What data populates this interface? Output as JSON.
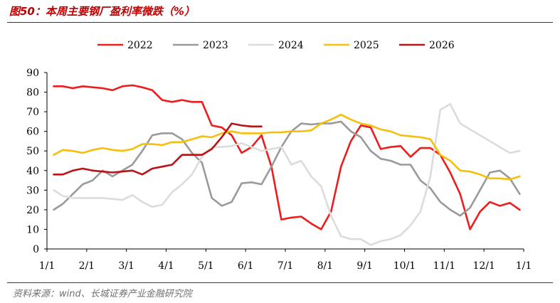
{
  "title": "图50：本周主要钢厂盈利率微跌（%）",
  "source": "资料来源：wind、长城证券产业金融研究院",
  "chart_data": {
    "type": "line",
    "title": "图50：本周主要钢厂盈利率微跌（%）",
    "xlabel": "",
    "ylabel": "",
    "x_ticks": [
      "1/1",
      "2/1",
      "3/1",
      "4/1",
      "5/1",
      "6/1",
      "7/1",
      "8/1",
      "9/1",
      "10/1",
      "11/1",
      "12/1",
      "1/1"
    ],
    "y_ticks": [
      0,
      10,
      20,
      30,
      40,
      50,
      60,
      70,
      80,
      90
    ],
    "ylim": [
      0,
      90
    ],
    "x_domain": [
      0,
      12
    ],
    "x_unit": "months since Jan 1",
    "grid": false,
    "legend_position": "top",
    "series": [
      {
        "name": "2022",
        "color": "#ee1c1c",
        "x": [
          0.17,
          0.4,
          0.65,
          0.9,
          1.15,
          1.4,
          1.65,
          1.9,
          2.15,
          2.4,
          2.65,
          2.9,
          3.15,
          3.4,
          3.65,
          3.9,
          4.15,
          4.4,
          4.65,
          4.9,
          5.15,
          5.4,
          5.65,
          5.9,
          6.15,
          6.4,
          6.65,
          6.9,
          7.15,
          7.4,
          7.65,
          7.9,
          8.15,
          8.4,
          8.65,
          8.9,
          9.15,
          9.4,
          9.65,
          9.9,
          10.15,
          10.4,
          10.65,
          10.9,
          11.15,
          11.4,
          11.65,
          11.9
        ],
        "values": [
          83,
          83,
          82,
          83,
          82.5,
          82,
          81,
          83,
          83.5,
          82.5,
          81,
          76,
          75,
          76,
          75,
          75,
          63,
          62,
          58,
          49,
          52,
          58,
          42,
          15,
          16,
          16.5,
          13,
          10,
          19,
          42,
          55,
          63,
          62,
          51,
          52,
          52.5,
          47,
          51.5,
          51.5,
          48,
          39,
          28,
          10,
          19,
          24,
          22,
          23.5,
          20
        ]
      },
      {
        "name": "2023",
        "color": "#9a9a9a",
        "x": [
          0.17,
          0.4,
          0.65,
          0.9,
          1.15,
          1.4,
          1.65,
          1.9,
          2.15,
          2.4,
          2.65,
          2.9,
          3.15,
          3.4,
          3.65,
          3.9,
          4.15,
          4.4,
          4.65,
          4.9,
          5.15,
          5.4,
          5.65,
          5.9,
          6.15,
          6.4,
          6.65,
          6.9,
          7.15,
          7.4,
          7.65,
          7.9,
          8.15,
          8.4,
          8.65,
          8.9,
          9.15,
          9.4,
          9.65,
          9.9,
          10.15,
          10.4,
          10.65,
          10.9,
          11.15,
          11.4,
          11.65,
          11.9
        ],
        "values": [
          20,
          23,
          28,
          33,
          35,
          40,
          37,
          40,
          43,
          50,
          58,
          59,
          59,
          56,
          49,
          44,
          26,
          22,
          24,
          33.5,
          34,
          33,
          42,
          52,
          60,
          64,
          63.5,
          64,
          64,
          65,
          60,
          57,
          50,
          46,
          45,
          43,
          43,
          35,
          31,
          24,
          20,
          17,
          21,
          30,
          39,
          40,
          36,
          28
        ]
      },
      {
        "name": "2024",
        "color": "#dcdcdc",
        "x": [
          0.17,
          0.4,
          0.65,
          0.9,
          1.15,
          1.4,
          1.65,
          1.9,
          2.15,
          2.4,
          2.65,
          2.9,
          3.15,
          3.4,
          3.65,
          3.9,
          4.15,
          4.4,
          4.65,
          4.9,
          5.15,
          5.4,
          5.65,
          5.9,
          6.15,
          6.4,
          6.65,
          6.9,
          7.15,
          7.4,
          7.65,
          7.9,
          8.15,
          8.4,
          8.65,
          8.9,
          9.15,
          9.4,
          9.65,
          9.9,
          10.15,
          10.4,
          10.65,
          10.9,
          11.15,
          11.4,
          11.65,
          11.9
        ],
        "values": [
          30,
          27,
          26,
          26,
          26,
          26,
          25.5,
          25,
          27.5,
          24,
          21.5,
          22.5,
          29,
          33,
          38,
          47,
          52,
          52,
          52.5,
          54,
          52,
          50,
          51,
          52,
          43,
          45,
          37,
          32,
          17,
          6.5,
          5,
          5,
          2,
          4,
          5,
          7,
          12,
          19,
          37,
          71,
          74,
          64,
          61,
          58,
          55,
          52,
          49,
          50
        ]
      },
      {
        "name": "2025",
        "color": "#f5bf0c",
        "x": [
          0.17,
          0.4,
          0.65,
          0.9,
          1.15,
          1.4,
          1.65,
          1.9,
          2.15,
          2.4,
          2.65,
          2.9,
          3.15,
          3.4,
          3.65,
          3.9,
          4.15,
          4.4,
          4.65,
          4.9,
          5.15,
          5.4,
          5.65,
          5.9,
          6.15,
          6.4,
          6.65,
          6.9,
          7.15,
          7.4,
          7.65,
          7.9,
          8.15,
          8.4,
          8.65,
          8.9,
          9.15,
          9.4,
          9.65,
          9.9,
          10.15,
          10.4,
          10.65,
          10.9,
          11.15,
          11.4,
          11.65,
          11.9
        ],
        "values": [
          48,
          50.5,
          50,
          49,
          50.5,
          51.5,
          50.5,
          50,
          51,
          53.5,
          53.5,
          53,
          54.5,
          54.5,
          56,
          57.5,
          57,
          59,
          60,
          59,
          59,
          59,
          59.5,
          59.5,
          60,
          60,
          60.5,
          64,
          66,
          68.5,
          66,
          64,
          63,
          61,
          60,
          58,
          57.5,
          57,
          56,
          48,
          45,
          40,
          39.5,
          38,
          36,
          36,
          35.5,
          37
        ]
      },
      {
        "name": "2026",
        "color": "#b81316",
        "x": [
          0.17,
          0.4,
          0.65,
          0.9,
          1.15,
          1.4,
          1.65,
          1.9,
          2.15,
          2.4,
          2.65,
          2.9,
          3.15,
          3.4,
          3.65,
          3.9,
          4.15,
          4.4,
          4.65,
          4.9,
          5.15,
          5.4
        ],
        "values": [
          38,
          38,
          40,
          41,
          40,
          39.5,
          39,
          39.5,
          40,
          38,
          41,
          42,
          43,
          48,
          48,
          48,
          51,
          57,
          64,
          63,
          62.5,
          62.5
        ]
      }
    ]
  }
}
